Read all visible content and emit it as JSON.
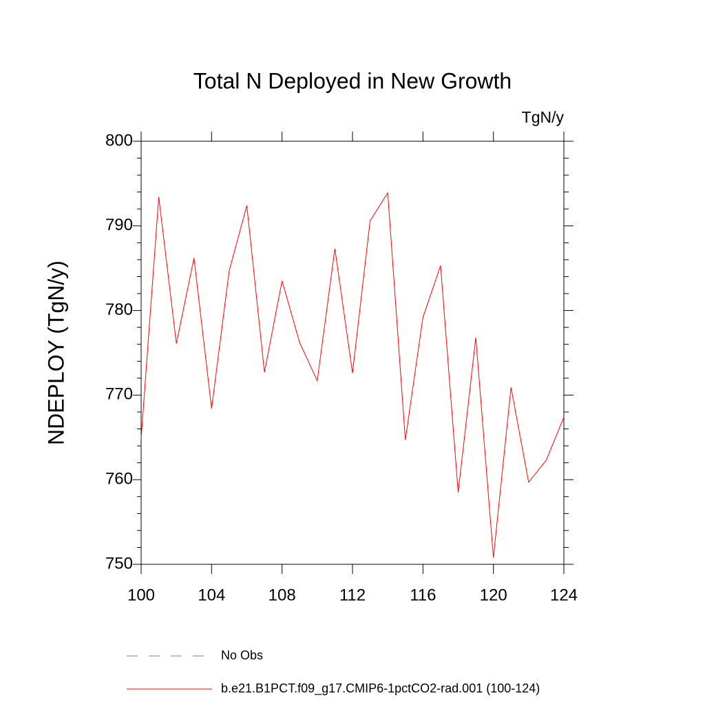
{
  "chart_data": {
    "type": "line",
    "title": "Total N Deployed in New Growth",
    "units": "TgN/y",
    "ylabel": "NDEPLOY  (TgN/y)",
    "x": [
      100,
      101,
      102,
      103,
      104,
      105,
      106,
      107,
      108,
      109,
      110,
      111,
      112,
      113,
      114,
      115,
      116,
      117,
      118,
      119,
      120,
      121,
      122,
      123,
      124
    ],
    "series": [
      {
        "name": "b.e21.B1PCT.f09_g17.CMIP6-1pctCO2-rad.001 (100-124)",
        "color": "#ff0000",
        "values": [
          764.9,
          793.4,
          776.1,
          786.2,
          768.4,
          784.7,
          792.4,
          772.7,
          783.5,
          776.2,
          771.7,
          787.3,
          772.6,
          790.6,
          793.9,
          764.7,
          779.2,
          785.3,
          758.5,
          776.8,
          750.8,
          770.9,
          759.7,
          762.3,
          767.4
        ]
      }
    ],
    "legend_extra": [
      {
        "name": "No Obs",
        "color": "#7b6fd0",
        "dash": true
      }
    ],
    "xlim": [
      100,
      124
    ],
    "xticks": [
      100,
      104,
      108,
      112,
      116,
      120,
      124
    ],
    "ylim": [
      750,
      800
    ],
    "yticks": [
      750,
      760,
      770,
      780,
      790,
      800
    ],
    "yminorticks": [
      752,
      754,
      756,
      758,
      762,
      764,
      766,
      768,
      772,
      774,
      776,
      778,
      782,
      784,
      786,
      788,
      792,
      794,
      796,
      798
    ],
    "grid": false
  }
}
